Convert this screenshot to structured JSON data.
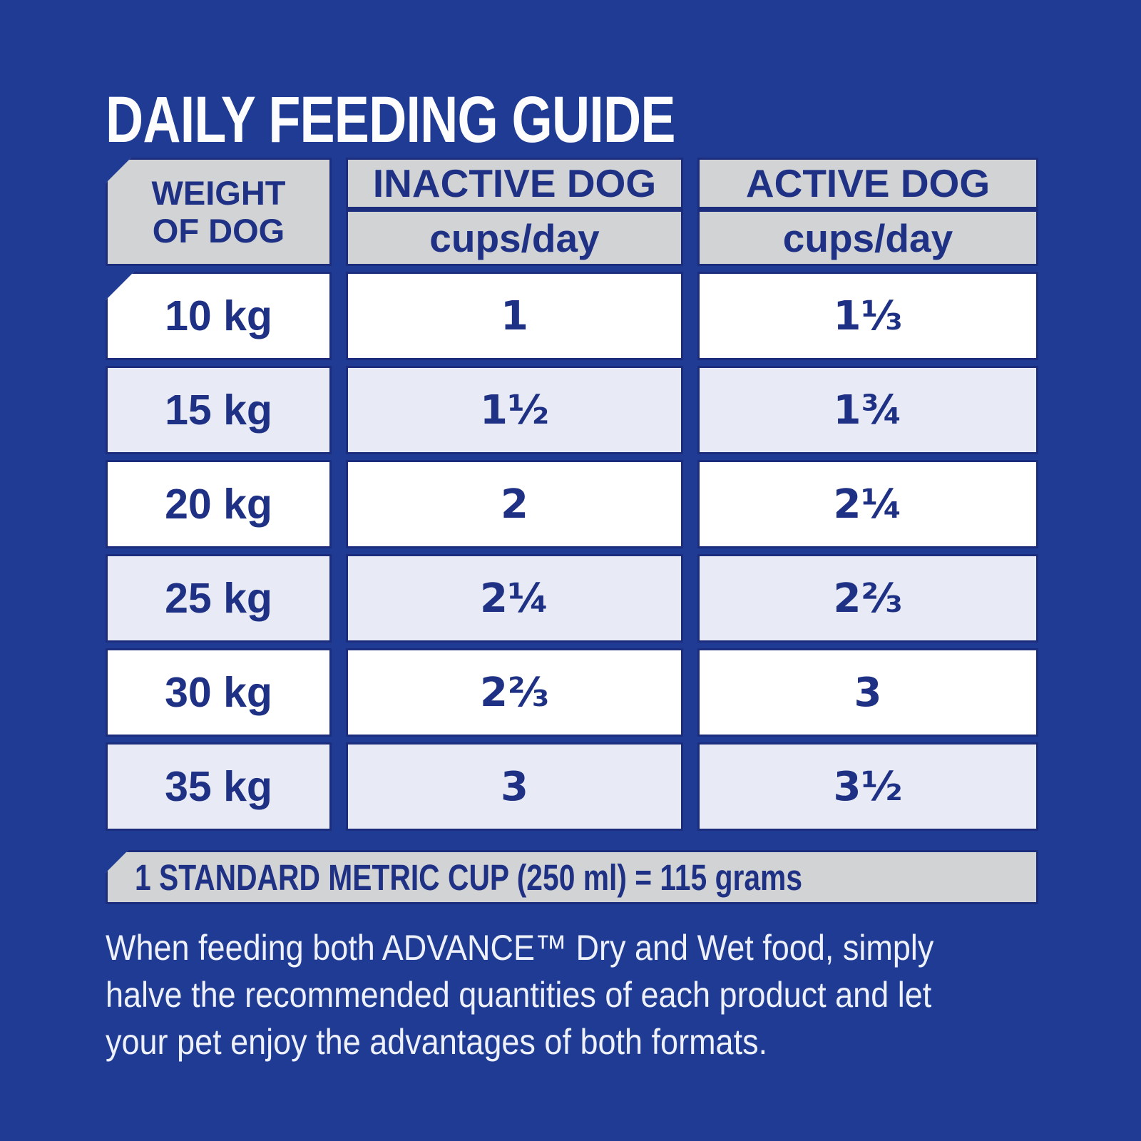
{
  "colors": {
    "background_blue": "#1f3b94",
    "border_navy": "#1b2d7c",
    "header_gray": "#d2d3d5",
    "row_white": "#ffffff",
    "row_alt_lavender": "#e8ebf5",
    "text_navy": "#1e3184",
    "text_white": "#fdfdfe"
  },
  "title": "DAILY FEEDING GUIDE",
  "table": {
    "columns": [
      {
        "id": "weight",
        "label": "WEIGHT OF DOG",
        "label_lines": [
          "WEIGHT",
          "OF DOG"
        ]
      },
      {
        "id": "inactive",
        "label": "INACTIVE DOG",
        "unit": "cups/day"
      },
      {
        "id": "active",
        "label": "ACTIVE DOG",
        "unit": "cups/day"
      }
    ],
    "rows": [
      {
        "weight": "10 kg",
        "inactive": "1",
        "active": "1⅓"
      },
      {
        "weight": "15 kg",
        "inactive": "1½",
        "active": "1¾"
      },
      {
        "weight": "20 kg",
        "inactive": "2",
        "active": "2¼"
      },
      {
        "weight": "25 kg",
        "inactive": "2¼",
        "active": "2⅔"
      },
      {
        "weight": "30 kg",
        "inactive": "2⅔",
        "active": "3"
      },
      {
        "weight": "35 kg",
        "inactive": "3",
        "active": "3½"
      }
    ]
  },
  "footnote": "1 STANDARD METRIC CUP (250 ml) = 115 grams",
  "description_lines": [
    "When feeding both ADVANCE™ Dry and Wet food, simply",
    "halve the recommended quantities of each product and let",
    "your pet enjoy the advantages of both formats."
  ]
}
